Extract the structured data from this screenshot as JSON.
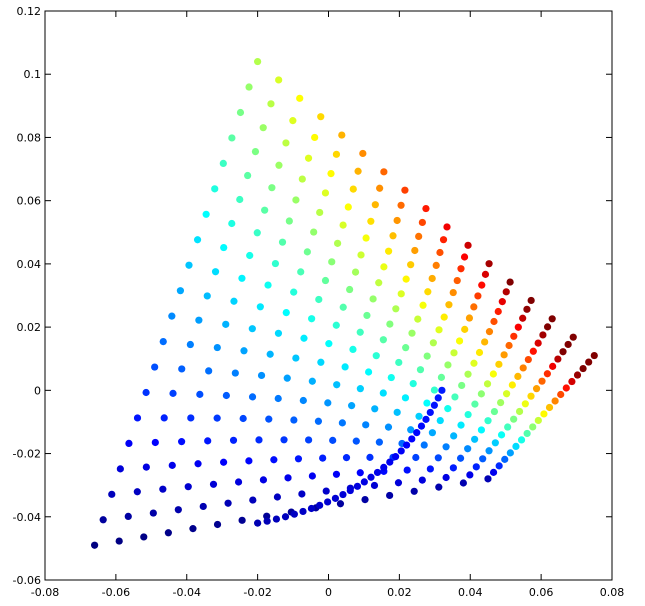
{
  "chart_data": {
    "type": "scatter",
    "title": "",
    "xlabel": "",
    "ylabel": "",
    "xlim": [
      -0.08,
      0.08
    ],
    "ylim": [
      -0.06,
      0.12
    ],
    "x_ticks": [
      -0.08,
      -0.06,
      -0.04,
      -0.02,
      0,
      0.02,
      0.04,
      0.06,
      0.08
    ],
    "y_ticks": [
      -0.06,
      -0.04,
      -0.02,
      0,
      0.02,
      0.04,
      0.06,
      0.08,
      0.1,
      0.12
    ],
    "x_tick_labels": [
      "-0.08",
      "-0.06",
      "-0.04",
      "-0.02",
      "0",
      "0.02",
      "0.04",
      "0.06",
      "0.08"
    ],
    "y_tick_labels": [
      "-0.06",
      "-0.04",
      "-0.02",
      "0",
      "0.02",
      "0.04",
      "0.06",
      "0.08",
      "0.1",
      "0.12"
    ],
    "grid": false,
    "legend": "none",
    "colormap": "jet",
    "color_scale": "value ranges from low (dark blue) to high (dark red)",
    "grid_shape": {
      "rows": 20,
      "cols": 17
    },
    "corners": {
      "bottom_left": [
        -0.066,
        -0.049
      ],
      "top": [
        -0.02,
        0.104
      ],
      "right": [
        0.075,
        0.011
      ],
      "bottom_mid": [
        0.045,
        -0.028
      ]
    },
    "extra_blue_arc": {
      "from": [
        -0.02,
        -0.042
      ],
      "control": [
        0.018,
        -0.034
      ],
      "to": [
        0.032,
        0.0
      ]
    }
  }
}
